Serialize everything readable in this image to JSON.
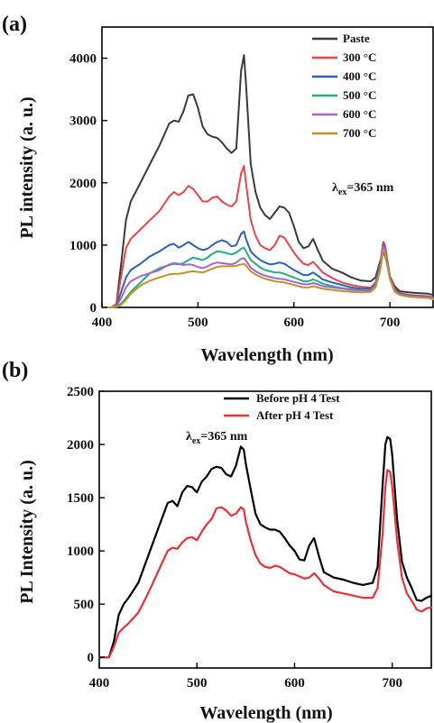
{
  "chart_data": [
    {
      "panel_label": "(a)",
      "type": "line",
      "xlabel": "Wavelength (nm)",
      "ylabel": "PL intensity (a. u.)",
      "xlim": [
        400,
        745
      ],
      "ylim": [
        0,
        4500
      ],
      "x_ticks": [
        400,
        500,
        600,
        700
      ],
      "y_ticks": [
        0,
        1000,
        2000,
        3000,
        4000
      ],
      "legend_position": "top-right",
      "annotation": {
        "prefix": "λ",
        "sub": "ex",
        "suffix": "=365 nm"
      },
      "series": [
        {
          "name": "Paste",
          "color": "#3a3a3a",
          "x": [
            400,
            410,
            415,
            420,
            425,
            430,
            440,
            450,
            460,
            470,
            475,
            480,
            485,
            490,
            495,
            500,
            505,
            510,
            515,
            520,
            525,
            530,
            535,
            540,
            545,
            548,
            550,
            555,
            560,
            565,
            570,
            575,
            580,
            585,
            590,
            595,
            600,
            605,
            610,
            615,
            620,
            625,
            630,
            640,
            650,
            660,
            670,
            680,
            685,
            690,
            693,
            695,
            700,
            705,
            710,
            720,
            730,
            740,
            745
          ],
          "y": [
            0,
            0,
            50,
            700,
            1400,
            1700,
            2000,
            2300,
            2600,
            2950,
            3000,
            2980,
            3150,
            3400,
            3420,
            3200,
            2900,
            2780,
            2740,
            2720,
            2650,
            2550,
            2480,
            2550,
            3800,
            4050,
            3600,
            2300,
            1850,
            1600,
            1480,
            1420,
            1520,
            1620,
            1600,
            1520,
            1300,
            1050,
            950,
            980,
            1100,
            920,
            750,
            620,
            560,
            480,
            430,
            420,
            480,
            750,
            900,
            830,
            500,
            340,
            260,
            240,
            230,
            220,
            200
          ]
        },
        {
          "name": "300 °C",
          "color": "#e8454a",
          "x": [
            400,
            410,
            415,
            420,
            425,
            430,
            440,
            450,
            460,
            470,
            475,
            480,
            485,
            490,
            495,
            500,
            505,
            510,
            515,
            520,
            525,
            530,
            535,
            540,
            545,
            548,
            550,
            555,
            560,
            565,
            570,
            575,
            580,
            585,
            590,
            595,
            600,
            605,
            610,
            615,
            620,
            625,
            630,
            640,
            650,
            660,
            670,
            680,
            685,
            690,
            693,
            695,
            700,
            705,
            710,
            720,
            730,
            740,
            745
          ],
          "y": [
            0,
            0,
            40,
            500,
            950,
            1100,
            1250,
            1400,
            1550,
            1780,
            1850,
            1800,
            1850,
            1950,
            1900,
            1800,
            1700,
            1700,
            1760,
            1780,
            1700,
            1650,
            1620,
            1700,
            2150,
            2270,
            2000,
            1400,
            1150,
            1000,
            950,
            920,
            1000,
            1150,
            1120,
            1000,
            880,
            780,
            700,
            680,
            730,
            650,
            560,
            470,
            400,
            360,
            330,
            320,
            400,
            700,
            1050,
            1000,
            500,
            300,
            230,
            200,
            190,
            180,
            160
          ]
        },
        {
          "name": "400 °C",
          "color": "#2e61b5",
          "x": [
            400,
            410,
            415,
            420,
            425,
            430,
            440,
            450,
            460,
            470,
            475,
            480,
            485,
            490,
            495,
            500,
            505,
            510,
            515,
            520,
            525,
            530,
            535,
            540,
            545,
            548,
            550,
            555,
            560,
            565,
            570,
            575,
            580,
            585,
            590,
            595,
            600,
            605,
            610,
            615,
            620,
            625,
            630,
            640,
            650,
            660,
            670,
            680,
            685,
            690,
            693,
            695,
            700,
            705,
            710,
            720,
            730,
            740,
            745
          ],
          "y": [
            0,
            0,
            30,
            250,
            480,
            600,
            700,
            820,
            900,
            1000,
            1020,
            960,
            1000,
            1050,
            1000,
            950,
            920,
            940,
            1000,
            1050,
            1080,
            1050,
            980,
            1000,
            1180,
            1220,
            1100,
            900,
            820,
            760,
            720,
            690,
            700,
            720,
            700,
            650,
            600,
            560,
            520,
            520,
            560,
            510,
            450,
            400,
            360,
            320,
            300,
            300,
            380,
            680,
            1000,
            950,
            500,
            280,
            220,
            190,
            180,
            170,
            150
          ]
        },
        {
          "name": "500 °C",
          "color": "#23b07a",
          "x": [
            400,
            410,
            415,
            420,
            425,
            430,
            440,
            450,
            460,
            470,
            475,
            480,
            485,
            490,
            495,
            500,
            505,
            510,
            515,
            520,
            525,
            530,
            535,
            540,
            545,
            548,
            550,
            555,
            560,
            565,
            570,
            575,
            580,
            585,
            590,
            595,
            600,
            605,
            610,
            615,
            620,
            625,
            630,
            640,
            650,
            660,
            670,
            680,
            685,
            690,
            693,
            695,
            700,
            705,
            710,
            720,
            730,
            740,
            745
          ],
          "y": [
            0,
            0,
            20,
            60,
            150,
            250,
            400,
            550,
            630,
            680,
            700,
            690,
            710,
            760,
            800,
            780,
            760,
            800,
            860,
            900,
            890,
            870,
            850,
            880,
            940,
            960,
            900,
            760,
            700,
            640,
            600,
            580,
            560,
            560,
            540,
            510,
            480,
            450,
            420,
            420,
            450,
            420,
            380,
            340,
            310,
            290,
            280,
            280,
            360,
            650,
            970,
            930,
            480,
            270,
            210,
            180,
            170,
            160,
            140
          ]
        },
        {
          "name": "600 °C",
          "color": "#a466cc",
          "x": [
            400,
            410,
            415,
            420,
            425,
            430,
            440,
            450,
            460,
            470,
            475,
            480,
            485,
            490,
            495,
            500,
            505,
            510,
            515,
            520,
            525,
            530,
            535,
            540,
            545,
            548,
            550,
            555,
            560,
            565,
            570,
            575,
            580,
            585,
            590,
            595,
            600,
            605,
            610,
            615,
            620,
            625,
            630,
            640,
            650,
            660,
            670,
            680,
            685,
            690,
            693,
            695,
            700,
            705,
            710,
            720,
            730,
            740,
            745
          ],
          "y": [
            0,
            0,
            20,
            150,
            320,
            420,
            500,
            550,
            600,
            690,
            710,
            700,
            680,
            690,
            680,
            650,
            630,
            660,
            700,
            720,
            710,
            700,
            690,
            720,
            780,
            790,
            750,
            640,
            580,
            540,
            510,
            490,
            470,
            460,
            450,
            430,
            410,
            390,
            370,
            370,
            390,
            370,
            340,
            320,
            300,
            280,
            270,
            270,
            340,
            640,
            980,
            940,
            480,
            270,
            210,
            180,
            170,
            160,
            140
          ]
        },
        {
          "name": "700 °C",
          "color": "#c0922d",
          "x": [
            400,
            410,
            415,
            420,
            425,
            430,
            440,
            450,
            460,
            470,
            475,
            480,
            485,
            490,
            495,
            500,
            505,
            510,
            515,
            520,
            525,
            530,
            535,
            540,
            545,
            548,
            550,
            555,
            560,
            565,
            570,
            575,
            580,
            585,
            590,
            595,
            600,
            605,
            610,
            615,
            620,
            625,
            630,
            640,
            650,
            660,
            670,
            680,
            685,
            690,
            693,
            695,
            700,
            705,
            710,
            720,
            730,
            740,
            745
          ],
          "y": [
            0,
            0,
            10,
            40,
            120,
            220,
            350,
            430,
            480,
            530,
            540,
            540,
            550,
            570,
            580,
            570,
            560,
            590,
            620,
            650,
            660,
            660,
            660,
            670,
            690,
            700,
            670,
            580,
            530,
            490,
            460,
            440,
            420,
            410,
            400,
            380,
            360,
            340,
            320,
            320,
            340,
            320,
            300,
            280,
            260,
            250,
            240,
            250,
            320,
            600,
            900,
            860,
            450,
            250,
            200,
            170,
            160,
            150,
            130
          ]
        }
      ]
    },
    {
      "panel_label": "(b)",
      "type": "line",
      "xlabel": "Wavelength (nm)",
      "ylabel": "PL Intensity (a. u.)",
      "xlim": [
        400,
        740
      ],
      "ylim": [
        -100,
        2500
      ],
      "x_ticks": [
        400,
        500,
        600,
        700
      ],
      "y_ticks": [
        0,
        500,
        1000,
        1500,
        2000,
        2500
      ],
      "legend_position": "top-right",
      "annotation": {
        "prefix": "λ",
        "sub": "ex",
        "suffix": "=365 nm"
      },
      "series": [
        {
          "name": "Before pH 4 Test",
          "color": "#000000",
          "x": [
            400,
            405,
            410,
            415,
            420,
            425,
            430,
            440,
            450,
            460,
            470,
            475,
            480,
            485,
            490,
            495,
            500,
            505,
            510,
            515,
            520,
            525,
            530,
            535,
            540,
            545,
            548,
            550,
            555,
            560,
            565,
            570,
            575,
            580,
            585,
            590,
            595,
            600,
            605,
            610,
            615,
            620,
            625,
            630,
            640,
            650,
            660,
            670,
            680,
            685,
            690,
            693,
            695,
            698,
            700,
            705,
            710,
            715,
            720,
            725,
            730,
            735,
            740
          ],
          "y": [
            0,
            0,
            0,
            150,
            400,
            500,
            560,
            700,
            950,
            1200,
            1450,
            1470,
            1420,
            1550,
            1610,
            1600,
            1550,
            1650,
            1700,
            1770,
            1790,
            1780,
            1720,
            1700,
            1800,
            1980,
            1950,
            1820,
            1580,
            1350,
            1250,
            1220,
            1200,
            1200,
            1180,
            1120,
            1050,
            1000,
            920,
            910,
            1050,
            1120,
            950,
            800,
            750,
            730,
            700,
            680,
            700,
            850,
            1600,
            2000,
            2070,
            2050,
            1900,
            1300,
            900,
            750,
            650,
            540,
            530,
            560,
            580
          ]
        },
        {
          "name": "After pH 4 Test",
          "color": "#e8313a",
          "x": [
            400,
            405,
            410,
            415,
            420,
            425,
            430,
            440,
            450,
            460,
            470,
            475,
            480,
            485,
            490,
            495,
            500,
            505,
            510,
            515,
            520,
            525,
            530,
            535,
            540,
            545,
            548,
            550,
            555,
            560,
            565,
            570,
            575,
            580,
            585,
            590,
            595,
            600,
            605,
            610,
            615,
            620,
            625,
            630,
            640,
            650,
            660,
            670,
            680,
            685,
            690,
            693,
            695,
            698,
            700,
            705,
            710,
            715,
            720,
            725,
            730,
            735,
            740
          ],
          "y": [
            0,
            0,
            0,
            100,
            230,
            280,
            320,
            420,
            600,
            800,
            1000,
            1030,
            1020,
            1080,
            1120,
            1130,
            1100,
            1180,
            1250,
            1300,
            1400,
            1410,
            1380,
            1330,
            1350,
            1410,
            1390,
            1280,
            1100,
            960,
            880,
            850,
            840,
            860,
            850,
            820,
            790,
            780,
            760,
            740,
            750,
            790,
            740,
            680,
            620,
            600,
            580,
            560,
            560,
            650,
            1150,
            1600,
            1760,
            1740,
            1600,
            1100,
            750,
            600,
            530,
            450,
            430,
            460,
            470
          ]
        }
      ]
    }
  ]
}
